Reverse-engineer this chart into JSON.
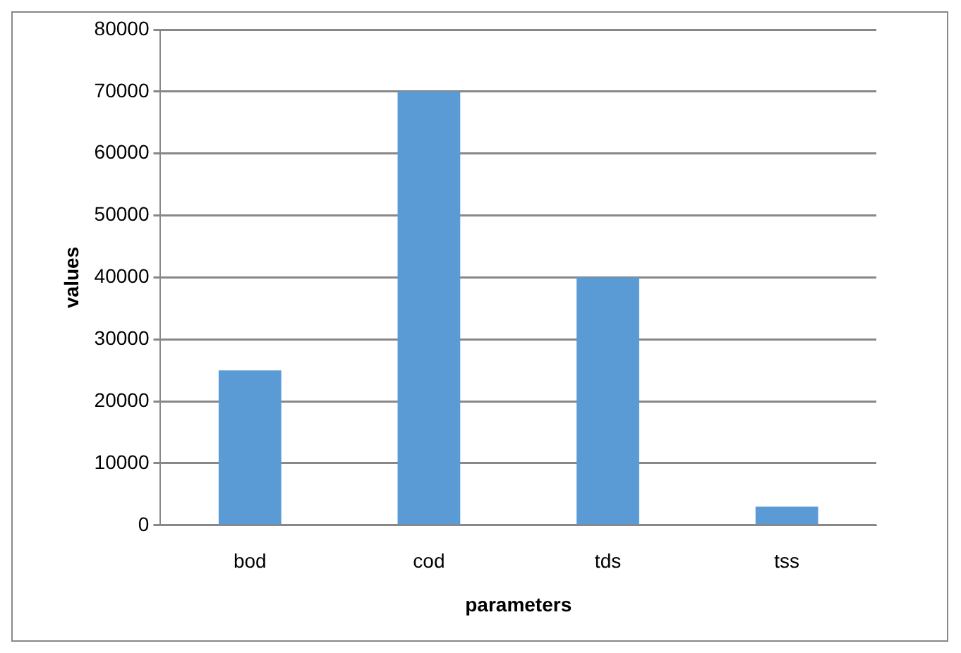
{
  "chart_data": {
    "type": "bar",
    "xlabel": "parameters",
    "ylabel": "values",
    "categories": [
      "bod",
      "cod",
      "tds",
      "tss"
    ],
    "values": [
      25000,
      70000,
      40000,
      3000
    ],
    "color": "#5b9bd5",
    "ylim": [
      0,
      80000
    ],
    "yticks": [
      0,
      10000,
      20000,
      30000,
      40000,
      50000,
      60000,
      70000,
      80000
    ],
    "grid": "y"
  }
}
